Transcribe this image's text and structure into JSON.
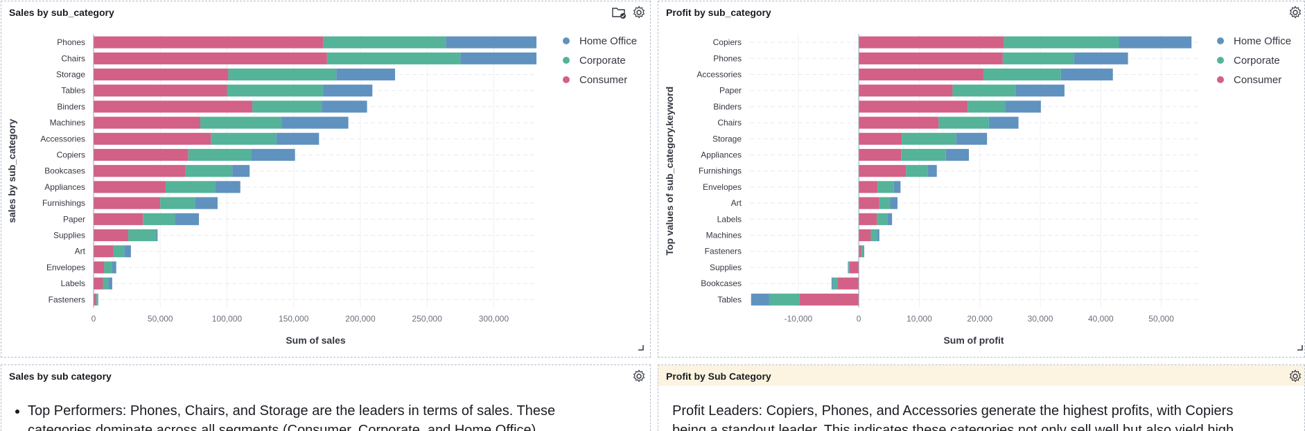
{
  "panels": {
    "sales_chart": {
      "title": "Sales by sub_category"
    },
    "profit_chart": {
      "title": "Profit by sub_category"
    },
    "sales_text": {
      "title": "Sales by sub category",
      "bullet": "Top Performers: Phones, Chairs, and Storage are the leaders in terms of sales. These",
      "line2": "categories dominate across all segments (Consumer, Corporate, and Home Office)."
    },
    "profit_text": {
      "title": "Profit by Sub Category",
      "line1": "Profit Leaders: Copiers, Phones, and Accessories generate the highest profits, with Copiers",
      "line2": "being a standout leader. This indicates these categories not only sell well but also yield high"
    }
  },
  "colors": {
    "home_office": "#6092c0",
    "corporate": "#54b399",
    "consumer": "#d36086",
    "header_highlight": "#fcf4e0"
  },
  "icons": {
    "settings": "gear-icon",
    "report": "folder-check-icon",
    "resize": "resize-handle-icon"
  },
  "chart_data": [
    {
      "type": "bar",
      "orientation": "horizontal",
      "stacked": true,
      "title": "Sales by sub_category",
      "xlabel": "Sum of sales",
      "ylabel": "sales by sub_category",
      "categories": [
        "Phones",
        "Chairs",
        "Storage",
        "Tables",
        "Binders",
        "Machines",
        "Accessories",
        "Copiers",
        "Bookcases",
        "Appliances",
        "Furnishings",
        "Paper",
        "Supplies",
        "Art",
        "Envelopes",
        "Labels",
        "Fasteners"
      ],
      "series": [
        {
          "name": "Consumer",
          "color": "#d36086",
          "values": [
            172000,
            175000,
            101000,
            100000,
            119000,
            80000,
            88000,
            71000,
            69000,
            54000,
            50000,
            37000,
            26000,
            15000,
            8000,
            7000,
            2000
          ]
        },
        {
          "name": "Corporate",
          "color": "#54b399",
          "values": [
            92000,
            100000,
            81000,
            72000,
            52000,
            61000,
            49000,
            47000,
            35000,
            37000,
            26000,
            24000,
            21000,
            8000,
            6000,
            4000,
            1000
          ]
        },
        {
          "name": "Home Office",
          "color": "#6092c0",
          "values": [
            68000,
            57000,
            44000,
            37000,
            34000,
            50000,
            32000,
            33000,
            13000,
            19000,
            17000,
            18000,
            1000,
            5000,
            3000,
            3000,
            500
          ]
        }
      ],
      "xticks": [
        "0",
        "50,000",
        "100,000",
        "150,000",
        "200,000",
        "250,000",
        "300,000"
      ],
      "xlim": [
        0,
        333000
      ],
      "legend": {
        "position": "top-right",
        "items": [
          "Home Office",
          "Corporate",
          "Consumer"
        ]
      },
      "grid": true
    },
    {
      "type": "bar",
      "orientation": "horizontal",
      "stacked": true,
      "title": "Profit by sub_category",
      "xlabel": "Sum of profit",
      "ylabel": "Top values of sub_category.keyword",
      "categories": [
        "Copiers",
        "Phones",
        "Accessories",
        "Paper",
        "Binders",
        "Chairs",
        "Storage",
        "Appliances",
        "Furnishings",
        "Envelopes",
        "Art",
        "Labels",
        "Machines",
        "Fasteners",
        "Supplies",
        "Bookcases",
        "Tables"
      ],
      "series": [
        {
          "name": "Consumer",
          "color": "#d36086",
          "values": [
            24000,
            23800,
            20600,
            15500,
            18000,
            13200,
            7100,
            7000,
            7800,
            3100,
            3400,
            3000,
            2000,
            400,
            -1500,
            -3500,
            -9800
          ]
        },
        {
          "name": "Corporate",
          "color": "#54b399",
          "values": [
            19000,
            11800,
            12800,
            10400,
            6200,
            8300,
            9000,
            7400,
            3600,
            2700,
            1800,
            1700,
            1000,
            300,
            -200,
            -800,
            -5000
          ]
        },
        {
          "name": "Home Office",
          "color": "#6092c0",
          "values": [
            12000,
            8900,
            8600,
            8100,
            5900,
            4900,
            5100,
            3800,
            1500,
            1100,
            1200,
            800,
            400,
            200,
            -100,
            -200,
            -3000
          ]
        }
      ],
      "xticks": [
        "-10,000",
        "0",
        "10,000",
        "20,000",
        "30,000",
        "40,000",
        "50,000"
      ],
      "xlim": [
        -18000,
        56000
      ],
      "legend": {
        "position": "top-right",
        "items": [
          "Home Office",
          "Corporate",
          "Consumer"
        ]
      },
      "grid": true
    }
  ]
}
